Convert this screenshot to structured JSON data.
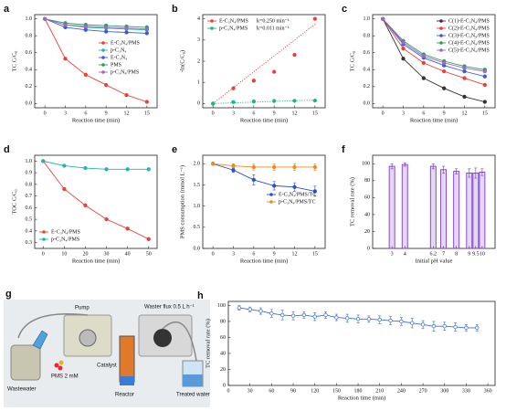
{
  "chart_data": [
    {
      "panel": "a",
      "type": "line",
      "xlabel": "Reaction time (min)",
      "ylabel": "TC C/C₀",
      "x": [
        0,
        3,
        6,
        9,
        12,
        15
      ],
      "xlim": [
        -1.5,
        16.5
      ],
      "xticks": [
        0,
        3,
        6,
        9,
        12,
        15
      ],
      "ylim": [
        -0.05,
        1.05
      ],
      "yticks": [
        {
          "value": 0,
          "label": "0.0"
        },
        0.2,
        0.4,
        0.6,
        0.8,
        {
          "value": 1,
          "label": "1.0"
        }
      ],
      "legend": "center right",
      "series": [
        {
          "name": "E-C₃N₄/PMS",
          "color": "#e8413a",
          "values": [
            1.0,
            0.53,
            0.34,
            0.22,
            0.1,
            0.02
          ]
        },
        {
          "name": "p-C₃N₄",
          "color": "#22b5b0",
          "values": [
            1.0,
            0.93,
            0.9,
            0.89,
            0.88,
            0.87
          ]
        },
        {
          "name": "E-C₃N₄",
          "color": "#3a5bd9",
          "values": [
            1.0,
            0.9,
            0.87,
            0.85,
            0.84,
            0.83
          ]
        },
        {
          "name": "PMS",
          "color": "#2e9b5a",
          "values": [
            1.0,
            0.95,
            0.93,
            0.92,
            0.91,
            0.9
          ]
        },
        {
          "name": "p-C₃N₄/PMS",
          "color": "#a066c8",
          "values": [
            1.0,
            0.93,
            0.91,
            0.9,
            0.89,
            0.88
          ]
        }
      ]
    },
    {
      "panel": "b",
      "type": "scatter",
      "xlabel": "Reaction time (min)",
      "ylabel": "-ln(C/C₀)",
      "x": [
        0,
        3,
        6,
        9,
        12,
        15
      ],
      "xlim": [
        -1.5,
        16.5
      ],
      "xticks": [
        0,
        3,
        6,
        9,
        12,
        15
      ],
      "ylim": [
        -0.2,
        4.2
      ],
      "yticks": [
        0,
        1,
        2,
        3,
        4
      ],
      "legend": "upper left",
      "series": [
        {
          "name": "E-C₃N₄/PMS",
          "color": "#e8413a",
          "values": [
            0,
            0.72,
            1.08,
            1.5,
            2.3,
            4.0
          ],
          "k": 0.25,
          "fit_label": "k=0.250 min⁻¹"
        },
        {
          "name": "p-C₃N₄/PMS",
          "color": "#22b57a",
          "values": [
            0,
            0.07,
            0.1,
            0.12,
            0.13,
            0.14
          ],
          "k": 0.011,
          "fit_label": "k=0.011 min⁻¹"
        }
      ]
    },
    {
      "panel": "c",
      "type": "line",
      "xlabel": "Reaction time (min)",
      "ylabel": "TC C/C₀",
      "x": [
        0,
        3,
        6,
        9,
        12,
        15
      ],
      "xlim": [
        -1.5,
        16.5
      ],
      "xticks": [
        0,
        3,
        6,
        9,
        12,
        15
      ],
      "ylim": [
        -0.05,
        1.05
      ],
      "yticks": [
        {
          "value": 0,
          "label": "0.0"
        },
        0.2,
        0.4,
        0.6,
        0.8,
        {
          "value": 1,
          "label": "1.0"
        }
      ],
      "legend": "upper right",
      "series": [
        {
          "name": "C(1)-E-C₃N₄/PMS",
          "color": "#333333",
          "values": [
            1.0,
            0.53,
            0.3,
            0.18,
            0.08,
            0.02
          ]
        },
        {
          "name": "C(2)-E-C₃N₄/PMS",
          "color": "#e8413a",
          "values": [
            1.0,
            0.65,
            0.48,
            0.38,
            0.3,
            0.22
          ]
        },
        {
          "name": "C(3)-E-C₃N₄/PMS",
          "color": "#3a5bd9",
          "values": [
            1.0,
            0.7,
            0.54,
            0.45,
            0.38,
            0.32
          ]
        },
        {
          "name": "C(4)-E-C₃N₄/PMS",
          "color": "#2e9b5a",
          "values": [
            1.0,
            0.74,
            0.58,
            0.5,
            0.44,
            0.4
          ]
        },
        {
          "name": "C(5)-E-C₃N₄/PMS",
          "color": "#a066c8",
          "values": [
            1.0,
            0.72,
            0.56,
            0.48,
            0.42,
            0.38
          ]
        }
      ]
    },
    {
      "panel": "d",
      "type": "line",
      "xlabel": "Reaction time (min)",
      "ylabel": "TOC C/C₀",
      "x": [
        0,
        10,
        20,
        30,
        40,
        50
      ],
      "xlim": [
        -4,
        54
      ],
      "xticks": [
        0,
        10,
        20,
        30,
        40,
        50
      ],
      "ylim": [
        0.25,
        1.05
      ],
      "yticks": [
        0.3,
        0.4,
        0.5,
        0.6,
        0.7,
        0.8,
        0.9,
        {
          "value": 1,
          "label": "1.0"
        }
      ],
      "legend": "lower left",
      "series": [
        {
          "name": "E-C₃N₄/PMS",
          "color": "#e8413a",
          "values": [
            1.0,
            0.76,
            0.62,
            0.5,
            0.42,
            0.33
          ]
        },
        {
          "name": "p-C₃N₄/PMS",
          "color": "#22b5b0",
          "values": [
            1.0,
            0.96,
            0.94,
            0.93,
            0.93,
            0.93
          ]
        }
      ]
    },
    {
      "panel": "e",
      "type": "line",
      "xlabel": "Reaction time (min)",
      "ylabel": "PMS consumption (mmol L⁻¹)",
      "x": [
        0,
        3,
        6,
        9,
        12,
        15
      ],
      "xlim": [
        -1.5,
        16.5
      ],
      "xticks": [
        0,
        3,
        6,
        9,
        12,
        15
      ],
      "ylim": [
        0,
        2.2
      ],
      "yticks": [
        {
          "value": 0,
          "label": "0.0"
        },
        0.5,
        {
          "value": 1,
          "label": "1.0"
        },
        1.5,
        {
          "value": 2,
          "label": "2.0"
        }
      ],
      "legend": "center right",
      "series": [
        {
          "name": "E-C₃N₄/PMS/TC",
          "color": "#2b4fd0",
          "values": [
            2.0,
            1.85,
            1.62,
            1.48,
            1.45,
            1.35
          ],
          "errors": [
            0.03,
            0.05,
            0.12,
            0.1,
            0.1,
            0.12
          ]
        },
        {
          "name": "p-C₃N₄/PMS/TC",
          "color": "#f08a1c",
          "values": [
            2.0,
            1.95,
            1.92,
            1.92,
            1.92,
            1.92
          ],
          "errors": [
            0.03,
            0.05,
            0.07,
            0.08,
            0.08,
            0.08
          ]
        }
      ]
    },
    {
      "panel": "f",
      "type": "bar",
      "xlabel": "Initial pH value",
      "ylabel": "TC removal rate (%)",
      "x": [
        3,
        4,
        6.2,
        7,
        8,
        9,
        9.5,
        10
      ],
      "xlim": [
        1.5,
        11
      ],
      "xticks": [
        3,
        4,
        6.2,
        7,
        8,
        9,
        9.5,
        10
      ],
      "ylim": [
        0,
        110
      ],
      "yticks": [
        0,
        20,
        40,
        60,
        80,
        100
      ],
      "color": "#7a3cc8",
      "values": [
        97,
        99,
        97,
        93,
        91,
        89,
        89,
        90
      ],
      "errors": [
        3,
        2,
        3,
        4,
        3,
        5,
        6,
        4
      ]
    },
    {
      "panel": "h",
      "type": "line",
      "xlabel": "Reaction time (min)",
      "ylabel": "TC removal rate (%)",
      "x": [
        15,
        30,
        45,
        60,
        75,
        90,
        105,
        120,
        135,
        150,
        165,
        180,
        195,
        210,
        225,
        240,
        255,
        270,
        285,
        300,
        315,
        330,
        345
      ],
      "xlim": [
        0,
        370
      ],
      "xticks": [
        0,
        30,
        60,
        90,
        120,
        150,
        180,
        210,
        240,
        270,
        300,
        330,
        360
      ],
      "ylim": [
        0,
        105
      ],
      "yticks": [
        0,
        20,
        40,
        60,
        80,
        100
      ],
      "color": "#3a6fd0",
      "values": [
        97,
        95,
        93,
        90,
        88,
        87,
        88,
        86,
        88,
        85,
        84,
        83,
        83,
        82,
        81,
        80,
        78,
        76,
        74,
        74,
        73,
        72,
        72
      ],
      "errors": [
        3,
        3,
        4,
        5,
        6,
        5,
        4,
        5,
        4,
        4,
        5,
        5,
        4,
        5,
        5,
        5,
        6,
        5,
        6,
        5,
        5,
        4,
        4
      ]
    }
  ],
  "diagram": {
    "panel": "g",
    "pump": "Pump",
    "flux": "Waster flux 0.5 L h⁻¹",
    "catalyst": "Catalyst",
    "pms": "PMS 2 mM",
    "reactor": "Reactor",
    "wastewater": "Wastewater",
    "treated": "Treated water"
  }
}
